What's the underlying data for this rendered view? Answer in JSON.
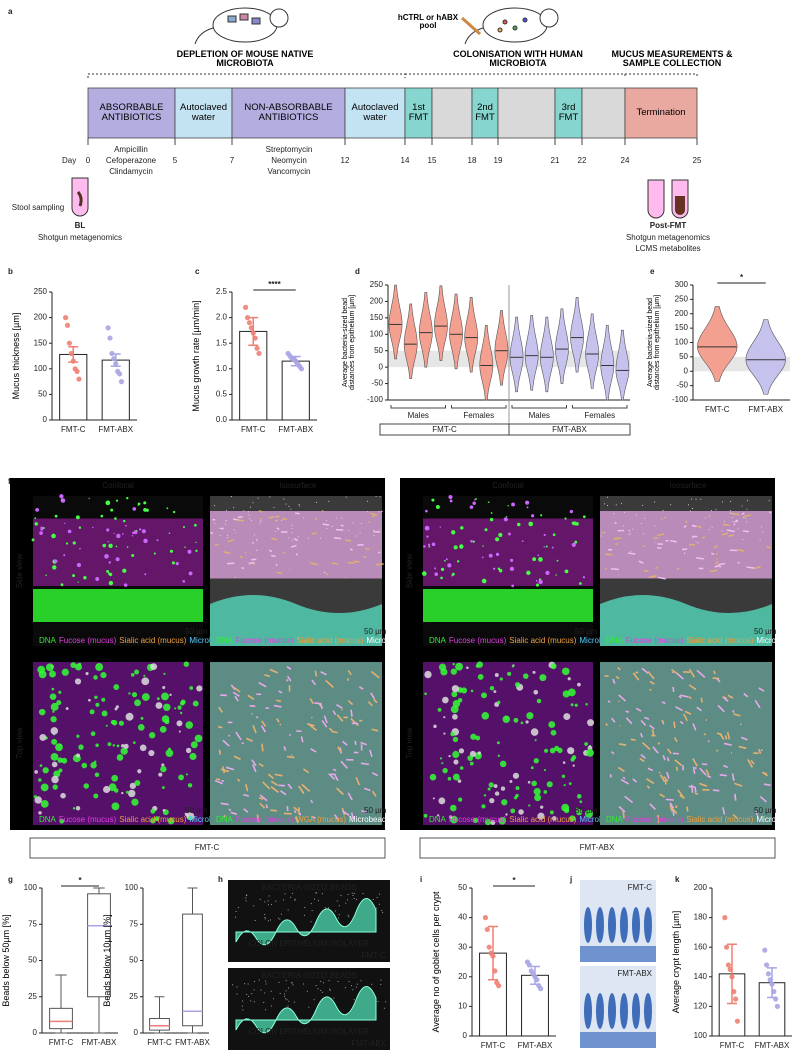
{
  "panel_labels": [
    "a",
    "b",
    "c",
    "d",
    "e",
    "f",
    "g",
    "h",
    "i",
    "j",
    "k"
  ],
  "timeline": {
    "hint": "hCTRL or hABX pool",
    "phases": [
      "DEPLETION OF MOUSE NATIVE MICROBIOTA",
      "COLONISATION WITH HUMAN MICROBIOTA",
      "MUCUS MEASUREMENTS & SAMPLE COLLECTION"
    ],
    "day_label": "Day",
    "days": [
      0,
      5,
      7,
      12,
      14,
      15,
      18,
      19,
      21,
      22,
      24,
      25
    ],
    "segments": [
      "ABSORBABLE ANTIBIOTICS",
      "Autoclaved water",
      "NON-ABSORBABLE ANTIBIOTICS",
      "Autoclaved water",
      "1st FMT",
      null,
      "2nd FMT",
      null,
      "3rd FMT",
      null,
      "Termination"
    ],
    "colors": [
      "#b4aee0",
      "#c3e3f3",
      "#b4aee0",
      "#c3e3f3",
      "#86d6cf",
      "#d9d9d9",
      "#86d6cf",
      "#d9d9d9",
      "#86d6cf",
      "#d9d9d9",
      "#e9a8a0"
    ],
    "drugs": [
      [
        "Ampicillin",
        "Cefoperazone",
        "Clindamycin"
      ],
      [
        "Streptomycin",
        "Neomycin",
        "Vancomycin"
      ]
    ],
    "baseline": {
      "note": "Stool sampling",
      "label": "BL",
      "lines": [
        "Shotgun metagenomics"
      ]
    },
    "post": {
      "label": "Post-FMT",
      "lines": [
        "Shotgun metagenomics",
        "LCMS metabolites"
      ]
    }
  },
  "chart_data": [
    {
      "type": "bar",
      "ylabel": "Mucus thickness [µm]",
      "categories": [
        "FMT-C",
        "FMT-ABX"
      ],
      "values": [
        128,
        117
      ],
      "errors": [
        15,
        12
      ],
      "points": [
        [
          200,
          185,
          150,
          130,
          115,
          100,
          95,
          80
        ],
        [
          180,
          160,
          130,
          120,
          110,
          95,
          90,
          75
        ]
      ],
      "colors": [
        "#f07f73",
        "#a9a4e4"
      ],
      "ylim": [
        0,
        250
      ],
      "yticks": [
        0,
        50,
        100,
        150,
        200,
        250
      ]
    },
    {
      "type": "bar",
      "ylabel": "Mucus growth rate [µm/min]",
      "categories": [
        "FMT-C",
        "FMT-ABX"
      ],
      "values": [
        1.73,
        1.15
      ],
      "errors": [
        0.27,
        0.09
      ],
      "points": [
        [
          2.2,
          2.0,
          1.9,
          1.8,
          1.7,
          1.6,
          1.4,
          1.3
        ],
        [
          1.3,
          1.25,
          1.2,
          1.18,
          1.15,
          1.1,
          1.05,
          1.0
        ]
      ],
      "colors": [
        "#f07f73",
        "#a9a4e4"
      ],
      "ylim": [
        0,
        2.5
      ],
      "yticks": [
        {
          "value": 0,
          "label": "0.0"
        },
        0.5,
        {
          "value": 1,
          "label": "1.0"
        },
        1.5,
        {
          "value": 2,
          "label": "2.0"
        },
        2.5
      ],
      "annotation": "****"
    },
    {
      "type": "violin",
      "ylabel": "Average bacteria-sized bead distances from epithelium [µm]",
      "values": [
        130,
        70,
        105,
        125,
        100,
        90,
        5,
        50,
        30,
        35,
        30,
        55,
        90,
        40,
        5,
        -10
      ],
      "colors": [
        "#f4a090",
        "#c6c2ee"
      ],
      "groups": [
        "Males",
        "Females",
        "Males",
        "Females"
      ],
      "treatments": [
        "FMT-C",
        "FMT-ABX"
      ],
      "ylim": [
        -100,
        250
      ],
      "yticks": [
        -100,
        -50,
        0,
        50,
        100,
        150,
        200,
        250
      ],
      "shaded_range": [
        0,
        50
      ]
    },
    {
      "type": "violin",
      "ylabel": "Average bacteria-sized bead distances from epithelium [µm]",
      "categories": [
        "FMT-C",
        "FMT-ABX"
      ],
      "values": [
        85,
        40
      ],
      "colors": [
        "#f4a090",
        "#c6c2ee"
      ],
      "ylim": [
        -100,
        300
      ],
      "yticks": [
        -100,
        -50,
        0,
        50,
        100,
        150,
        200,
        250,
        300
      ],
      "shaded_range": [
        0,
        50
      ],
      "annotation": "*"
    },
    {
      "type": "box",
      "ylabel": "Beads below 50µm [%]",
      "categories": [
        "FMT-C",
        "FMT-ABX"
      ],
      "min": [
        0,
        0
      ],
      "q1": [
        3,
        25
      ],
      "median": [
        8,
        74
      ],
      "q3": [
        17,
        96
      ],
      "max": [
        40,
        100
      ],
      "colors": [
        "#f07f73",
        "#a9a4e4"
      ],
      "ylim": [
        0,
        100
      ],
      "yticks": [
        0,
        25,
        50,
        75,
        100
      ],
      "annotation": "*"
    },
    {
      "type": "box",
      "ylabel": "Beads below 10µm [%]",
      "categories": [
        "FMT-C",
        "FMT-ABX"
      ],
      "min": [
        0,
        0
      ],
      "q1": [
        2,
        5
      ],
      "median": [
        5,
        15
      ],
      "q3": [
        10,
        82
      ],
      "max": [
        25,
        100
      ],
      "colors": [
        "#f07f73",
        "#a9a4e4"
      ],
      "ylim": [
        0,
        100
      ],
      "yticks": [
        0,
        25,
        50,
        75,
        100
      ]
    },
    {
      "type": "bar",
      "ylabel": "Average no of goblet cells per crypt",
      "categories": [
        "FMT-C",
        "FMT-ABX"
      ],
      "values": [
        28,
        20.5
      ],
      "errors": [
        9,
        3
      ],
      "points": [
        [
          40,
          36,
          30,
          28,
          27,
          22,
          18,
          17
        ],
        [
          25,
          24,
          22,
          21,
          20,
          19,
          17,
          16
        ]
      ],
      "colors": [
        "#f07f73",
        "#a9a4e4"
      ],
      "ylim": [
        0,
        50
      ],
      "yticks": [
        0,
        10,
        20,
        30,
        40,
        50
      ],
      "annotation": "*"
    },
    {
      "type": "bar",
      "ylabel": "Average crypt length [µm]",
      "categories": [
        "FMT-C",
        "FMT-ABX"
      ],
      "values": [
        142,
        136
      ],
      "errors": [
        20,
        10
      ],
      "points": [
        [
          180,
          160,
          148,
          145,
          140,
          130,
          125,
          110
        ],
        [
          158,
          148,
          142,
          138,
          135,
          130,
          125,
          120
        ]
      ],
      "colors": [
        "#f07f73",
        "#a9a4e4"
      ],
      "ylim": [
        100,
        200
      ],
      "yticks": [
        100,
        120,
        140,
        160,
        180,
        200
      ]
    }
  ],
  "images": {
    "headers": [
      "Confocal",
      "Isosurface"
    ],
    "rows": [
      "Side view",
      "Top view"
    ],
    "channels": [
      "DNA",
      "Fucose (mucus)",
      "Sialic acid (mucus)",
      "Microbeads"
    ],
    "alt_channel": "WGA (mucus)",
    "channel_colors": [
      "#33ee33",
      "#e040e0",
      "#f0a040",
      "#55ccff"
    ],
    "scale": "50 µm",
    "groups": [
      "FMT-C",
      "FMT-ABX"
    ],
    "beads": "BACTERIA-SIZED BEADS",
    "layer": "COLON EPITHELIUM ISOLAYER"
  }
}
